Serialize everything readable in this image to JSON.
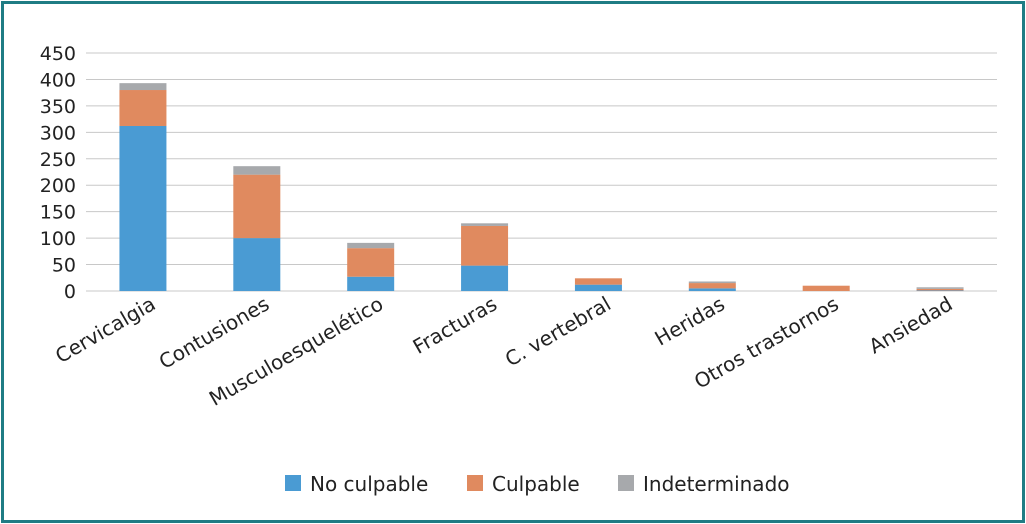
{
  "chart_data": {
    "type": "bar",
    "stacked": true,
    "categories": [
      "Cervicalgia",
      "Contusiones",
      "Musculoesquelético",
      "Fracturas",
      "C. vertebral",
      "Heridas",
      "Otros trastornos",
      "Ansiedad"
    ],
    "series": [
      {
        "name": "No culpable",
        "color": "#4a9bd3",
        "values": [
          312,
          100,
          27,
          48,
          12,
          5,
          0,
          1
        ]
      },
      {
        "name": "Culpable",
        "color": "#e08a5f",
        "values": [
          68,
          120,
          54,
          75,
          12,
          10,
          10,
          3
        ]
      },
      {
        "name": "Indeterminado",
        "color": "#a7a9ac",
        "values": [
          13,
          16,
          10,
          5,
          0,
          3,
          0,
          3
        ]
      }
    ],
    "y_ticks": [
      "0",
      "50",
      "100",
      "150",
      "200",
      "250",
      "300",
      "350",
      "400",
      "450"
    ],
    "ylim": [
      0,
      450
    ],
    "grid": true,
    "legend_position": "bottom",
    "title": "",
    "xlabel": "",
    "ylabel": ""
  }
}
